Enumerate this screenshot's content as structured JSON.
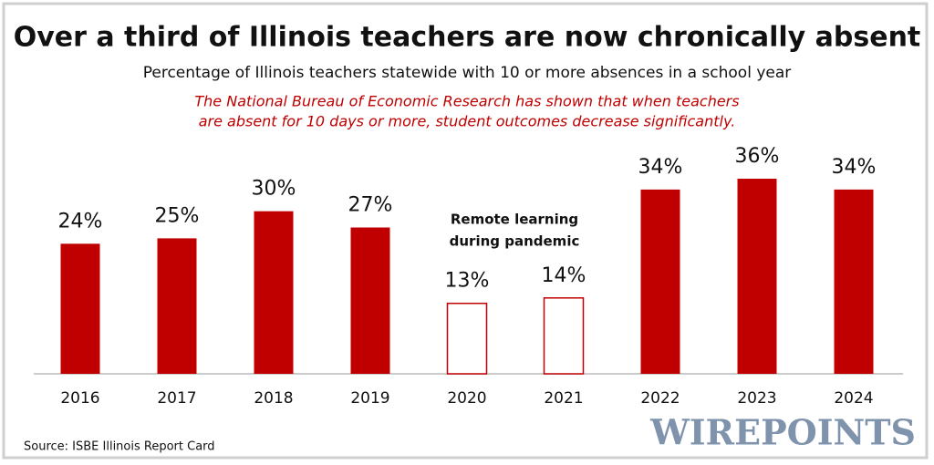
{
  "chart_data": {
    "type": "bar",
    "title": "Over a third of Illinois teachers are now chronically absent",
    "subtitle": "Percentage of Illinois teachers statewide with 10 or more absences in a school year",
    "note": [
      "The National Bureau of Economic Research has shown that when teachers",
      "are absent for 10 days or more, student outcomes decrease significantly."
    ],
    "annotation": [
      "Remote learning",
      "during pandemic"
    ],
    "categories": [
      "2016",
      "2017",
      "2018",
      "2019",
      "2020",
      "2021",
      "2022",
      "2023",
      "2024"
    ],
    "values": [
      24,
      25,
      30,
      27,
      13,
      14,
      34,
      36,
      34
    ],
    "value_labels": [
      "24%",
      "25%",
      "30%",
      "27%",
      "13%",
      "14%",
      "34%",
      "36%",
      "34%"
    ],
    "color": "#c00000",
    "fills": [
      "#c00000",
      "#c00000",
      "#c00000",
      "#c00000",
      "#ffffff",
      "#ffffff",
      "#c00000",
      "#c00000",
      "#c00000"
    ],
    "source": "Source: ISBE Illinois Report Card",
    "watermark": "WIREPOINTS"
  }
}
